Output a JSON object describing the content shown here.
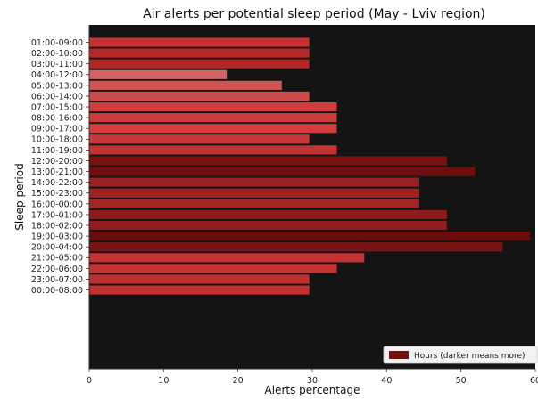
{
  "chart_data": {
    "type": "bar",
    "orientation": "horizontal",
    "title": "Air alerts per potential sleep period (May - Lviv region)",
    "xlabel": "Alerts percentage",
    "ylabel": "Sleep period",
    "xlim": [
      0,
      60
    ],
    "xticks": [
      0,
      10,
      20,
      30,
      40,
      50,
      60
    ],
    "grid": false,
    "background_color": "#141414",
    "legend": {
      "position": "bottom-right",
      "entries": [
        {
          "label": "Hours (darker means more)",
          "color": "#6e1212"
        }
      ]
    },
    "categories": [
      "01:00-09:00",
      "02:00-10:00",
      "03:00-11:00",
      "04:00-12:00",
      "05:00-13:00",
      "06:00-14:00",
      "07:00-15:00",
      "08:00-16:00",
      "09:00-17:00",
      "10:00-18:00",
      "11:00-19:00",
      "12:00-20:00",
      "13:00-21:00",
      "14:00-22:00",
      "15:00-23:00",
      "16:00-00:00",
      "17:00-01:00",
      "18:00-02:00",
      "19:00-03:00",
      "20:00-04:00",
      "21:00-05:00",
      "22:00-06:00",
      "23:00-07:00",
      "00:00-08:00"
    ],
    "values": [
      29.6,
      29.6,
      29.6,
      18.5,
      25.9,
      29.6,
      33.3,
      33.3,
      33.3,
      29.6,
      33.3,
      48.1,
      51.9,
      44.4,
      44.4,
      44.4,
      48.1,
      48.1,
      59.3,
      55.6,
      37.0,
      33.3,
      29.6,
      29.6
    ],
    "colors": [
      "#c53132",
      "#b82a2a",
      "#b22626",
      "#d36362",
      "#d05454",
      "#cc4a4a",
      "#d03d3e",
      "#cc3b3c",
      "#d43c3e",
      "#c83838",
      "#c43334",
      "#7a1212",
      "#6e0e0e",
      "#9a1f1f",
      "#a02222",
      "#a22424",
      "#8e1a1a",
      "#951c1c",
      "#6a0c0c",
      "#7a1414",
      "#c43233",
      "#c43334",
      "#be2e2f",
      "#c03031"
    ]
  }
}
